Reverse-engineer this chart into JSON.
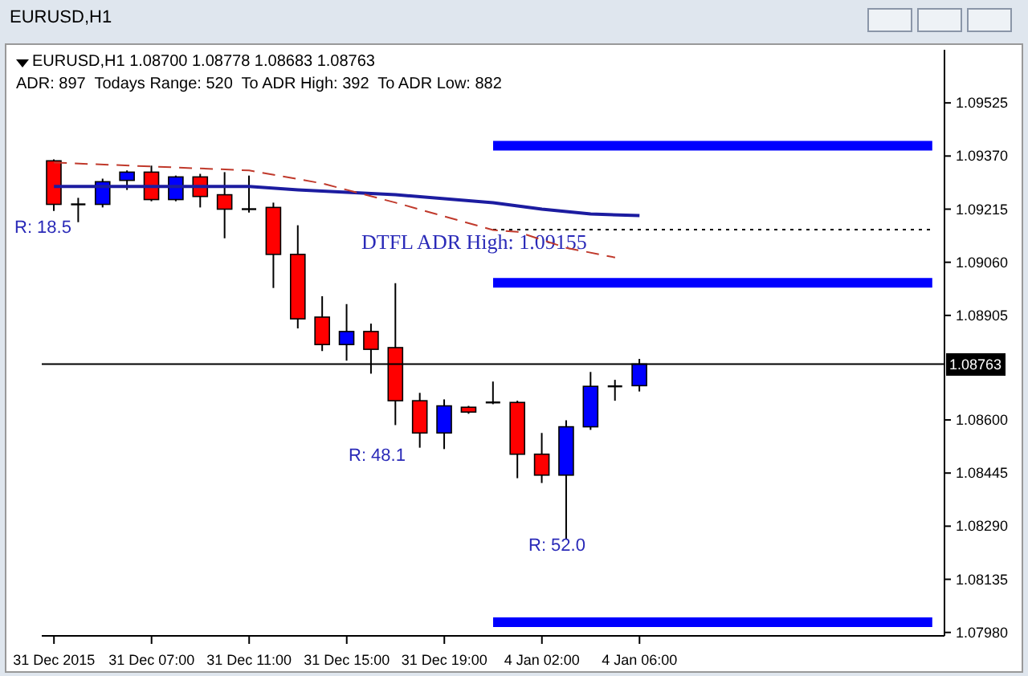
{
  "chart_data": {
    "type": "candlestick",
    "title": "EURUSD,H1 1.08700 1.08778 1.08683 1.08763",
    "subtitle": "ADR: 897  Todays Range: 520  To ADR High: 392  To ADR Low: 882",
    "annotations": [
      "EURUSD,H1",
      "R: 18.5",
      "R: 48.1",
      "R: 52.0"
    ],
    "categories": [
      "31 Dec 2015",
      null,
      null,
      null,
      "31 Dec 07:00",
      null,
      null,
      null,
      "31 Dec 11:00",
      null,
      null,
      null,
      "31 Dec 15:00",
      null,
      null,
      null,
      "31 Dec 19:00",
      null,
      null,
      null,
      "4 Jan 02:00",
      null,
      null,
      null,
      "4 Jan 06:00",
      null,
      null,
      null,
      null,
      null,
      null,
      null,
      null,
      null,
      null,
      null,
      null
    ],
    "ohlc": [
      [
        1.09356,
        1.0936,
        1.0921,
        1.09229
      ],
      [
        1.09229,
        1.09248,
        1.09177,
        1.09229
      ],
      [
        1.09229,
        1.09304,
        1.0922,
        1.09295
      ],
      [
        1.09299,
        1.09328,
        1.09271,
        1.09323
      ],
      [
        1.09323,
        1.09342,
        1.09238,
        1.09243
      ],
      [
        1.09243,
        1.09313,
        1.09238,
        1.09309
      ],
      [
        1.09309,
        1.09318,
        1.0922,
        1.09252
      ],
      [
        1.09257,
        1.09323,
        1.0913,
        1.09215
      ],
      [
        1.09215,
        1.09313,
        1.09205,
        1.09215
      ],
      [
        1.0922,
        1.09234,
        1.08985,
        1.09083
      ],
      [
        1.09083,
        1.09168,
        1.08867,
        1.08895
      ],
      [
        1.089,
        1.08961,
        1.08801,
        1.0882
      ],
      [
        1.0882,
        1.08938,
        1.08773,
        1.08858
      ],
      [
        1.08858,
        1.08881,
        1.08735,
        1.08806
      ],
      [
        1.08811,
        1.08999,
        1.08585,
        1.08656
      ],
      [
        1.08656,
        1.08679,
        1.08519,
        1.08562
      ],
      [
        1.08562,
        1.0866,
        1.08515,
        1.08641
      ],
      [
        1.08637,
        1.08641,
        1.08618,
        1.08623
      ],
      [
        1.08651,
        1.08712,
        1.08646,
        1.08651
      ],
      [
        1.08651,
        1.08656,
        1.0843,
        1.085
      ],
      [
        1.085,
        1.08562,
        1.08416,
        1.08439
      ],
      [
        1.08439,
        1.08599,
        1.08251,
        1.0858
      ],
      [
        1.0858,
        1.0874,
        1.08571,
        1.08698
      ],
      [
        1.08698,
        1.08717,
        1.08656,
        1.08698
      ],
      [
        1.087,
        1.08778,
        1.08683,
        1.08763
      ],
      null,
      null,
      null,
      null,
      null,
      null,
      null,
      null,
      null,
      null,
      null,
      null
    ],
    "colors": [
      "#ff0000",
      "#000000",
      "#0000ff",
      "#0000ff",
      "#ff0000",
      "#0000ff",
      "#ff0000",
      "#ff0000",
      "#000000",
      "#ff0000",
      "#ff0000",
      "#ff0000",
      "#0000ff",
      "#ff0000",
      "#ff0000",
      "#ff0000",
      "#0000ff",
      "#ff0000",
      "#000000",
      "#ff0000",
      "#ff0000",
      "#0000ff",
      "#0000ff",
      "#000000",
      "#0000ff",
      null,
      null,
      null,
      null,
      null,
      null,
      null,
      null,
      null,
      null,
      null,
      null
    ],
    "series": [
      {
        "type": "line",
        "color": "#1c1ca0",
        "values": [
          1.09281,
          null,
          null,
          null,
          null,
          null,
          null,
          null,
          1.09281,
          null,
          1.09271,
          null,
          null,
          null,
          1.09257,
          null,
          null,
          null,
          1.09234,
          null,
          1.09215,
          null,
          1.09201,
          null,
          1.09196,
          null,
          null,
          null,
          null,
          null,
          null,
          null,
          null,
          null,
          null,
          null,
          null
        ]
      },
      {
        "type": "line",
        "color": "#c0392b",
        "line_style": "dashed",
        "values": [
          1.09351,
          null,
          null,
          null,
          null,
          null,
          null,
          null,
          1.09328,
          null,
          null,
          1.0929,
          null,
          null,
          1.09234,
          null,
          null,
          null,
          1.09154,
          1.09149,
          null,
          1.09102,
          null,
          1.09074,
          null,
          null,
          null,
          null,
          null,
          null,
          null,
          null,
          null,
          null,
          null,
          null,
          null
        ]
      }
    ],
    "ylim": [
      1.0797,
      1.0968
    ],
    "yticks": [
      {
        "value": 1.0798,
        "label": "1.07980"
      },
      {
        "value": 1.08135,
        "label": "1.08135"
      },
      {
        "value": 1.0829,
        "label": "1.08290"
      },
      {
        "value": 1.08445,
        "label": "1.08445"
      },
      {
        "value": 1.086,
        "label": "1.08600"
      },
      {
        "value": 1.08905,
        "label": "1.08905"
      },
      {
        "value": 1.0906,
        "label": "1.09060"
      },
      {
        "value": 1.09215,
        "label": "1.09215"
      },
      {
        "value": 1.0937,
        "label": "1.09370"
      },
      {
        "value": 1.09525,
        "label": "1.09525"
      }
    ],
    "ref_lines": [
      {
        "axis": "y",
        "value": 1.094,
        "color": "#0000ff"
      },
      {
        "axis": "y",
        "value": 1.09,
        "color": "#0000ff"
      },
      {
        "axis": "y",
        "value": 1.0801,
        "color": "#0000ff"
      },
      {
        "axis": "y",
        "value": 1.09155,
        "label": "DTFL ADR High: 1.09155",
        "line_style": "dotted",
        "color": "#000000"
      },
      {
        "axis": "y",
        "value": 1.08763,
        "label": "1.08763",
        "color": "#000000"
      }
    ],
    "grid": false,
    "legend": false
  }
}
